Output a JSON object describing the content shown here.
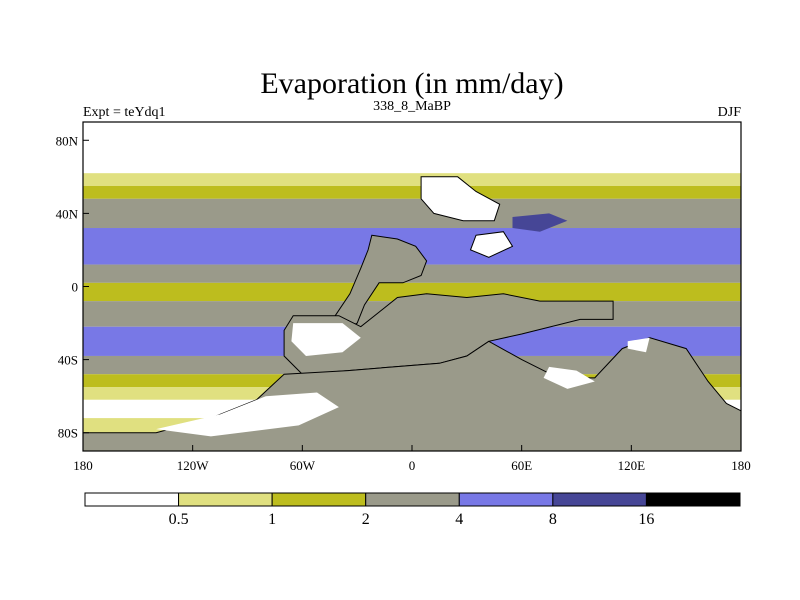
{
  "chart_data": {
    "type": "heatmap",
    "title": "Evaporation (in mm/day)",
    "left_label": "Expt = teYdq1",
    "center_label": "338_8_MaBP",
    "right_label": "DJF",
    "xlim": [
      -180,
      180
    ],
    "ylim": [
      -90,
      90
    ],
    "x_ticks": [
      {
        "value": -180,
        "label": "180"
      },
      {
        "value": -120,
        "label": "120W"
      },
      {
        "value": -60,
        "label": "60W"
      },
      {
        "value": 0,
        "label": "0"
      },
      {
        "value": 60,
        "label": "60E"
      },
      {
        "value": 120,
        "label": "120E"
      },
      {
        "value": 180,
        "label": "180"
      }
    ],
    "y_ticks": [
      {
        "value": 80,
        "label": "80N"
      },
      {
        "value": 40,
        "label": "40N"
      },
      {
        "value": 0,
        "label": "0"
      },
      {
        "value": -40,
        "label": "40S"
      },
      {
        "value": -80,
        "label": "80S"
      }
    ],
    "colorbar": {
      "levels": [
        "0.5",
        "1",
        "2",
        "4",
        "8",
        "16"
      ],
      "colors": [
        "#ffffff",
        "#e0e080",
        "#bdbd1e",
        "#9a9a8a",
        "#7878e6",
        "#464696",
        "#000000"
      ]
    },
    "zonal_bands": [
      {
        "lat_max": 90,
        "lat_min": 62,
        "bin": 0
      },
      {
        "lat_max": 62,
        "lat_min": 55,
        "bin": 1
      },
      {
        "lat_max": 55,
        "lat_min": 48,
        "bin": 2
      },
      {
        "lat_max": 48,
        "lat_min": 32,
        "bin": 3
      },
      {
        "lat_max": 32,
        "lat_min": 12,
        "bin": 4
      },
      {
        "lat_max": 12,
        "lat_min": 2,
        "bin": 3
      },
      {
        "lat_max": 2,
        "lat_min": -8,
        "bin": 2
      },
      {
        "lat_max": -8,
        "lat_min": -22,
        "bin": 3
      },
      {
        "lat_max": -22,
        "lat_min": -38,
        "bin": 4
      },
      {
        "lat_max": -38,
        "lat_min": -48,
        "bin": 3
      },
      {
        "lat_max": -48,
        "lat_min": -55,
        "bin": 2
      },
      {
        "lat_max": -55,
        "lat_min": -62,
        "bin": 1
      },
      {
        "lat_max": -62,
        "lat_min": -72,
        "bin": 0
      },
      {
        "lat_max": -72,
        "lat_min": -80,
        "bin": 1
      },
      {
        "lat_max": -80,
        "lat_min": -90,
        "bin": 2
      }
    ],
    "land_regions": [
      {
        "name": "north-continent",
        "bin": 0,
        "outline": true,
        "points": [
          [
            5,
            60
          ],
          [
            25,
            60
          ],
          [
            35,
            52
          ],
          [
            48,
            45
          ],
          [
            45,
            36
          ],
          [
            28,
            36
          ],
          [
            12,
            40
          ],
          [
            5,
            48
          ]
        ]
      },
      {
        "name": "central-land-north",
        "bin": 3,
        "outline": true,
        "points": [
          [
            -22,
            28
          ],
          [
            -8,
            26
          ],
          [
            2,
            22
          ],
          [
            8,
            14
          ],
          [
            5,
            6
          ],
          [
            -5,
            2
          ],
          [
            -18,
            2
          ],
          [
            -26,
            -10
          ],
          [
            -30,
            -20
          ],
          [
            -38,
            -24
          ],
          [
            -42,
            -16
          ],
          [
            -34,
            -4
          ],
          [
            -28,
            10
          ],
          [
            -24,
            20
          ]
        ]
      },
      {
        "name": "gondwana-west",
        "bin": 3,
        "outline": true,
        "points": [
          [
            -65,
            -16
          ],
          [
            -40,
            -16
          ],
          [
            -28,
            -22
          ],
          [
            -18,
            -14
          ],
          [
            -8,
            -6
          ],
          [
            8,
            -4
          ],
          [
            30,
            -6
          ],
          [
            50,
            -4
          ],
          [
            70,
            -8
          ],
          [
            90,
            -8
          ],
          [
            110,
            -8
          ],
          [
            110,
            -18
          ],
          [
            92,
            -18
          ],
          [
            60,
            -26
          ],
          [
            42,
            -30
          ],
          [
            30,
            -38
          ],
          [
            15,
            -42
          ],
          [
            -10,
            -44
          ],
          [
            -35,
            -46
          ],
          [
            -60,
            -48
          ],
          [
            -70,
            -38
          ],
          [
            -70,
            -24
          ]
        ]
      },
      {
        "name": "gondwana-south",
        "bin": 3,
        "outline": true,
        "points": [
          [
            -70,
            -48
          ],
          [
            -35,
            -46
          ],
          [
            -10,
            -44
          ],
          [
            15,
            -42
          ],
          [
            30,
            -38
          ],
          [
            42,
            -30
          ],
          [
            60,
            -40
          ],
          [
            80,
            -50
          ],
          [
            100,
            -50
          ],
          [
            115,
            -34
          ],
          [
            130,
            -28
          ],
          [
            150,
            -34
          ],
          [
            162,
            -52
          ],
          [
            172,
            -64
          ],
          [
            180,
            -68
          ],
          [
            180,
            -90
          ],
          [
            -180,
            -90
          ],
          [
            -180,
            -80
          ],
          [
            -140,
            -80
          ],
          [
            -110,
            -72
          ],
          [
            -85,
            -62
          ]
        ]
      },
      {
        "name": "sw-desert",
        "bin": 0,
        "outline": false,
        "points": [
          [
            -65,
            -20
          ],
          [
            -38,
            -20
          ],
          [
            -28,
            -28
          ],
          [
            -38,
            -36
          ],
          [
            -58,
            -38
          ],
          [
            -66,
            -30
          ]
        ]
      },
      {
        "name": "s-desert",
        "bin": 0,
        "outline": false,
        "points": [
          [
            -140,
            -78
          ],
          [
            -105,
            -70
          ],
          [
            -80,
            -60
          ],
          [
            -52,
            -58
          ],
          [
            -40,
            -66
          ],
          [
            -62,
            -76
          ],
          [
            -110,
            -82
          ]
        ]
      },
      {
        "name": "se-desert-1",
        "bin": 0,
        "outline": false,
        "points": [
          [
            75,
            -44
          ],
          [
            90,
            -46
          ],
          [
            100,
            -52
          ],
          [
            85,
            -56
          ],
          [
            72,
            -50
          ]
        ]
      },
      {
        "name": "se-desert-2",
        "bin": 0,
        "outline": false,
        "points": [
          [
            118,
            -30
          ],
          [
            130,
            -28
          ],
          [
            128,
            -36
          ],
          [
            118,
            -34
          ]
        ]
      },
      {
        "name": "eastern-highland",
        "bin": 0,
        "outline": true,
        "points": [
          [
            35,
            28
          ],
          [
            50,
            30
          ],
          [
            55,
            22
          ],
          [
            42,
            16
          ],
          [
            32,
            20
          ]
        ]
      },
      {
        "name": "east-island",
        "bin": 5,
        "outline": false,
        "points": [
          [
            55,
            38
          ],
          [
            75,
            40
          ],
          [
            85,
            36
          ],
          [
            70,
            30
          ],
          [
            55,
            32
          ]
        ]
      }
    ]
  }
}
